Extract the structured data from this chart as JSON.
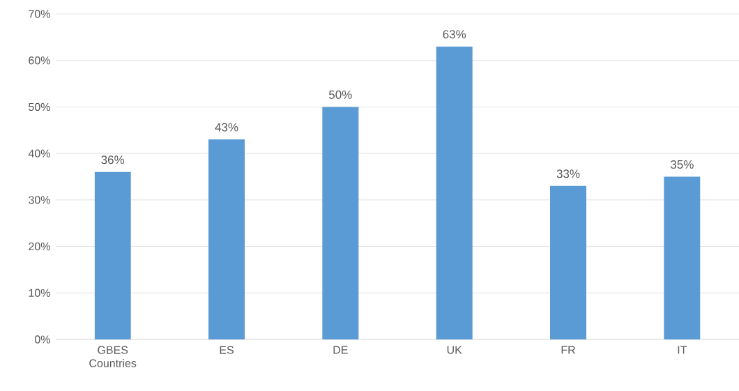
{
  "chart_data": {
    "type": "bar",
    "categories": [
      "GBES Countries",
      "ES",
      "DE",
      "UK",
      "FR",
      "IT"
    ],
    "values": [
      36,
      43,
      50,
      63,
      33,
      35
    ],
    "value_labels": [
      "36%",
      "43%",
      "50%",
      "63%",
      "33%",
      "35%"
    ],
    "color": "#5b9bd5",
    "ylim": [
      0,
      70
    ],
    "yticks": [
      {
        "value": 0,
        "label": "0%"
      },
      {
        "value": 10,
        "label": "10%"
      },
      {
        "value": 20,
        "label": "20%"
      },
      {
        "value": 30,
        "label": "30%"
      },
      {
        "value": 40,
        "label": "40%"
      },
      {
        "value": 50,
        "label": "50%"
      },
      {
        "value": 60,
        "label": "60%"
      },
      {
        "value": 70,
        "label": "70%"
      }
    ],
    "grid": "y"
  }
}
